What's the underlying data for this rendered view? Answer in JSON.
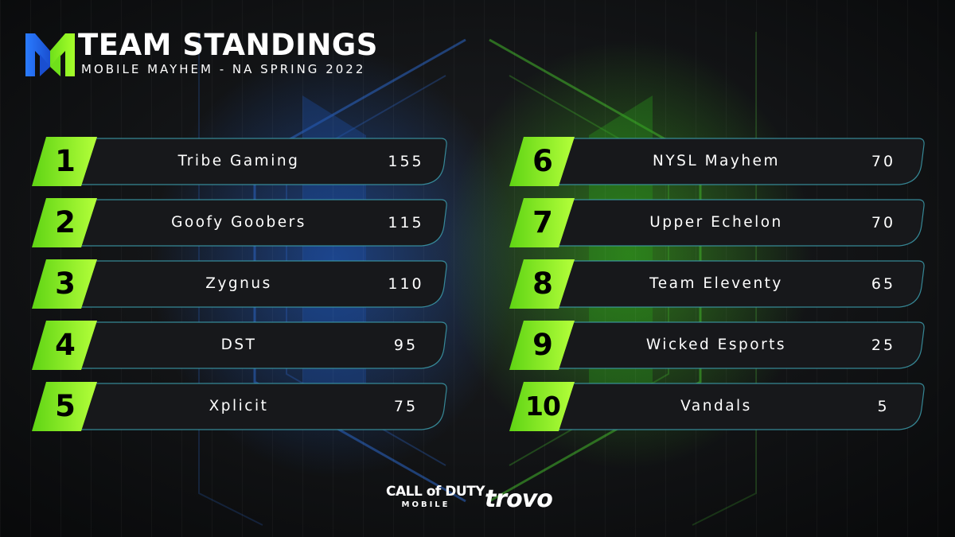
{
  "header": {
    "title": "TEAM STANDINGS",
    "subtitle": "MOBILE MAYHEM - NA SPRING 2022",
    "logo_icon": "mobile-mayhem-logo-icon"
  },
  "standings": {
    "left": [
      {
        "rank": "1",
        "team": "Tribe Gaming",
        "points": "155"
      },
      {
        "rank": "2",
        "team": "Goofy Goobers",
        "points": "115"
      },
      {
        "rank": "3",
        "team": "Zygnus",
        "points": "110"
      },
      {
        "rank": "4",
        "team": "DST",
        "points": "95"
      },
      {
        "rank": "5",
        "team": "Xplicit",
        "points": "75"
      }
    ],
    "right": [
      {
        "rank": "6",
        "team": "NYSL Mayhem",
        "points": "70"
      },
      {
        "rank": "7",
        "team": "Upper Echelon",
        "points": "70"
      },
      {
        "rank": "8",
        "team": "Team Eleventy",
        "points": "65"
      },
      {
        "rank": "9",
        "team": "Wicked Esports",
        "points": "25"
      },
      {
        "rank": "10",
        "team": "Vandals",
        "points": "5"
      }
    ]
  },
  "sponsors": {
    "cod_main": "CALL of DUTY",
    "cod_sub": "MOBILE",
    "trovo": "trovo"
  },
  "colors": {
    "accent_green": "#8cf21a",
    "accent_blue": "#2f86ff",
    "row_bg": "#17181b",
    "row_border": "#3fa4b4",
    "background": "#0c0d0f"
  }
}
